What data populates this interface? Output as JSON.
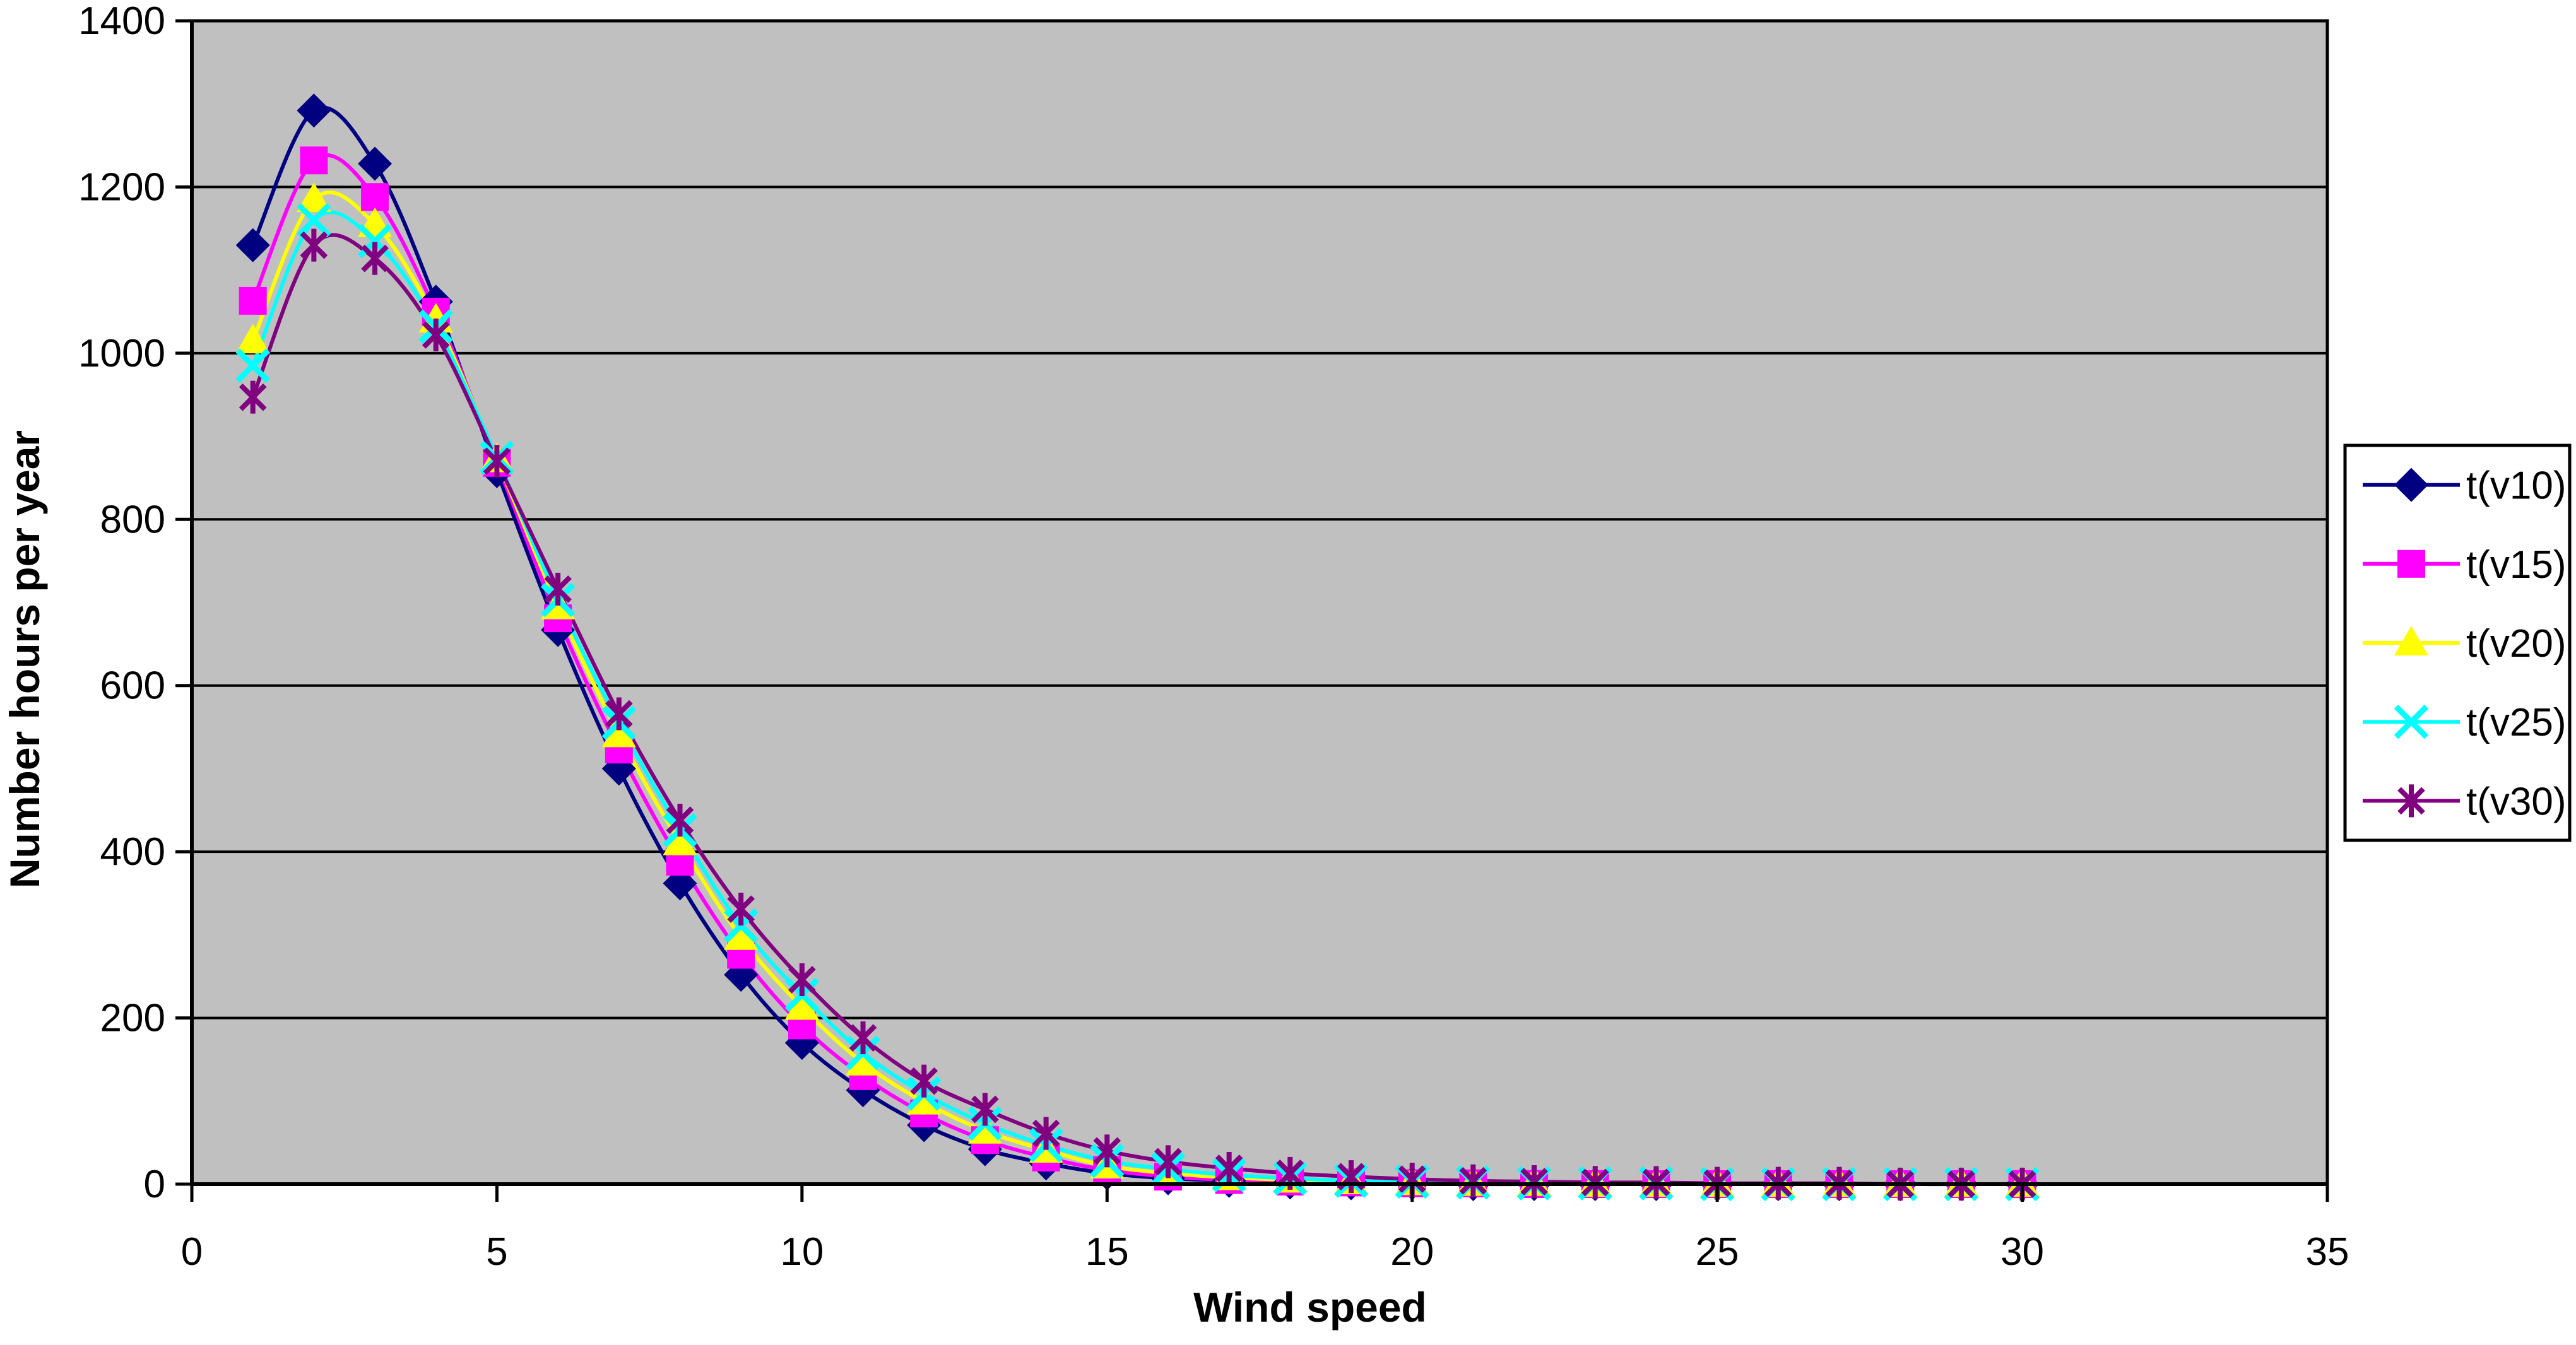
{
  "chart_data": {
    "type": "line",
    "title": "",
    "xlabel": "Wind speed",
    "ylabel": "Number hours per year",
    "xlim": [
      0,
      35
    ],
    "ylim": [
      0,
      1400
    ],
    "x_ticks": [
      0,
      5,
      10,
      15,
      20,
      25,
      30,
      35
    ],
    "y_ticks": [
      0,
      200,
      400,
      600,
      800,
      1000,
      1200,
      1400
    ],
    "grid": true,
    "smoothed_lines": true,
    "plot_bg_color": "#C0C0C0",
    "gridline_color": "#000000",
    "legend_position": "right",
    "x": [
      1,
      2,
      3,
      4,
      5,
      6,
      7,
      8,
      9,
      10,
      11,
      12,
      13,
      14,
      15,
      16,
      17,
      18,
      19,
      20,
      21,
      22,
      23,
      24,
      25,
      26,
      27,
      28,
      29,
      30
    ],
    "series": [
      {
        "name": "t(v10)",
        "color": "#000080",
        "marker": "diamond",
        "values": [
          1130,
          1292,
          1228,
          1062,
          858,
          667,
          500,
          362,
          252,
          170,
          113,
          71,
          42,
          25,
          13,
          7,
          4,
          2,
          1,
          1,
          0,
          0,
          0,
          0,
          0,
          0,
          0,
          0,
          0,
          0
        ]
      },
      {
        "name": "t(v15)",
        "color": "#FF00FF",
        "marker": "square",
        "values": [
          1063,
          1232,
          1188,
          1050,
          868,
          681,
          523,
          388,
          276,
          191,
          130,
          85,
          53,
          32,
          17,
          9,
          5,
          3,
          2,
          1,
          1,
          0,
          0,
          0,
          0,
          0,
          0,
          0,
          0,
          0
        ]
      },
      {
        "name": "t(v20)",
        "color": "#FFFF00",
        "marker": "triangle",
        "values": [
          1015,
          1185,
          1155,
          1040,
          872,
          695,
          541,
          411,
          297,
          213,
          146,
          99,
          64,
          41,
          22,
          13,
          8,
          5,
          3,
          2,
          1,
          1,
          0,
          0,
          0,
          0,
          0,
          0,
          0,
          0
        ]
      },
      {
        "name": "t(v25)",
        "color": "#00FFFF",
        "marker": "x",
        "values": [
          985,
          1160,
          1135,
          1032,
          874,
          703,
          555,
          426,
          311,
          228,
          158,
          109,
          73,
          47,
          28,
          18,
          11,
          7,
          4,
          3,
          2,
          1,
          1,
          1,
          0,
          0,
          0,
          0,
          0,
          0
        ]
      },
      {
        "name": "t(v30)",
        "color": "#800080",
        "marker": "asterisk",
        "values": [
          947,
          1130,
          1114,
          1022,
          870,
          716,
          566,
          438,
          331,
          246,
          176,
          124,
          90,
          61,
          40,
          27,
          19,
          13,
          9,
          6,
          4,
          3,
          2,
          2,
          1,
          1,
          1,
          0,
          0,
          0
        ]
      }
    ]
  }
}
